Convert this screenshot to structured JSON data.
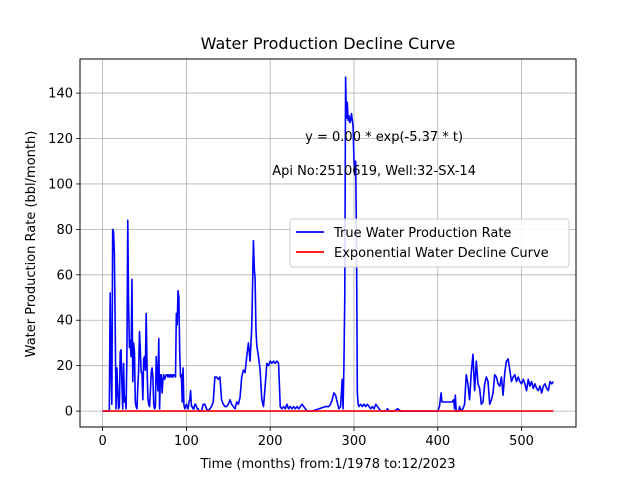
{
  "chart_data": {
    "type": "line",
    "title": "Water Production Decline Curve",
    "xlabel": "Time (months) from:1/1978 to:12/2023",
    "ylabel": "Water Production Rate (bbl/month)",
    "xlim": [
      -27,
      565
    ],
    "ylim": [
      -7,
      155
    ],
    "xticks": [
      0,
      100,
      200,
      300,
      400,
      500
    ],
    "yticks": [
      0,
      20,
      40,
      60,
      80,
      100,
      120,
      140
    ],
    "grid": true,
    "legend_position": "center-right",
    "annotations": [
      {
        "text": "y = 0.00 * exp(-5.37 * t)",
        "x": 336,
        "y": 119
      },
      {
        "text": "Api No:2510619, Well:32-SX-14",
        "x": 324,
        "y": 104
      }
    ],
    "series": [
      {
        "name": "True Water Production Rate",
        "color": "#0000ff",
        "points": [
          [
            0,
            0
          ],
          [
            8,
            0
          ],
          [
            9,
            52
          ],
          [
            10,
            18
          ],
          [
            11,
            3
          ],
          [
            12,
            80
          ],
          [
            13,
            79
          ],
          [
            14,
            70
          ],
          [
            15,
            38
          ],
          [
            16,
            1
          ],
          [
            17,
            19
          ],
          [
            18,
            10
          ],
          [
            19,
            1
          ],
          [
            20,
            2
          ],
          [
            21,
            26
          ],
          [
            22,
            27
          ],
          [
            23,
            12
          ],
          [
            24,
            1
          ],
          [
            25,
            21
          ],
          [
            26,
            4
          ],
          [
            27,
            6
          ],
          [
            28,
            1
          ],
          [
            29,
            25
          ],
          [
            30,
            84
          ],
          [
            31,
            47
          ],
          [
            32,
            28
          ],
          [
            33,
            31
          ],
          [
            34,
            24
          ],
          [
            35,
            58
          ],
          [
            36,
            13
          ],
          [
            37,
            30
          ],
          [
            38,
            26
          ],
          [
            39,
            4
          ],
          [
            40,
            2
          ],
          [
            41,
            1
          ],
          [
            42,
            11
          ],
          [
            43,
            18
          ],
          [
            44,
            35
          ],
          [
            45,
            27
          ],
          [
            46,
            17
          ],
          [
            47,
            17
          ],
          [
            48,
            5
          ],
          [
            49,
            23
          ],
          [
            50,
            24
          ],
          [
            51,
            18
          ],
          [
            52,
            43
          ],
          [
            53,
            20
          ],
          [
            54,
            6
          ],
          [
            55,
            3
          ],
          [
            56,
            2
          ],
          [
            57,
            9
          ],
          [
            58,
            17
          ],
          [
            59,
            19
          ],
          [
            60,
            15
          ],
          [
            61,
            3
          ],
          [
            62,
            1
          ],
          [
            63,
            2
          ],
          [
            64,
            24
          ],
          [
            65,
            15
          ],
          [
            66,
            9
          ],
          [
            67,
            32
          ],
          [
            68,
            1
          ],
          [
            69,
            16
          ],
          [
            70,
            16
          ],
          [
            71,
            8
          ],
          [
            72,
            14
          ],
          [
            73,
            16
          ],
          [
            74,
            14
          ],
          [
            75,
            15
          ],
          [
            76,
            16
          ],
          [
            77,
            16
          ],
          [
            78,
            15
          ],
          [
            79,
            16
          ],
          [
            80,
            15
          ],
          [
            81,
            16
          ],
          [
            82,
            15
          ],
          [
            83,
            16
          ],
          [
            84,
            15
          ],
          [
            85,
            16
          ],
          [
            86,
            16
          ],
          [
            87,
            15
          ],
          [
            88,
            43
          ],
          [
            89,
            38
          ],
          [
            90,
            53
          ],
          [
            91,
            50
          ],
          [
            92,
            26
          ],
          [
            93,
            15
          ],
          [
            94,
            16
          ],
          [
            95,
            4
          ],
          [
            96,
            19
          ],
          [
            97,
            3
          ],
          [
            98,
            1
          ],
          [
            99,
            2
          ],
          [
            100,
            3
          ],
          [
            101,
            2
          ],
          [
            102,
            1
          ],
          [
            103,
            4
          ],
          [
            104,
            5
          ],
          [
            105,
            9
          ],
          [
            106,
            2
          ],
          [
            107,
            2
          ],
          [
            108,
            1
          ],
          [
            109,
            1
          ],
          [
            110,
            3
          ],
          [
            111,
            3
          ],
          [
            112,
            2
          ],
          [
            113,
            1
          ],
          [
            114,
            1
          ],
          [
            115,
            0
          ],
          [
            118,
            0
          ],
          [
            120,
            3
          ],
          [
            122,
            3
          ],
          [
            124,
            1
          ],
          [
            126,
            0
          ],
          [
            128,
            1
          ],
          [
            130,
            2
          ],
          [
            132,
            4
          ],
          [
            134,
            15
          ],
          [
            136,
            15
          ],
          [
            138,
            14
          ],
          [
            140,
            15
          ],
          [
            142,
            5
          ],
          [
            144,
            3
          ],
          [
            146,
            2
          ],
          [
            148,
            2
          ],
          [
            150,
            3
          ],
          [
            152,
            5
          ],
          [
            154,
            3
          ],
          [
            156,
            2
          ],
          [
            158,
            1
          ],
          [
            160,
            4
          ],
          [
            162,
            3
          ],
          [
            164,
            6
          ],
          [
            166,
            15
          ],
          [
            168,
            18
          ],
          [
            170,
            17
          ],
          [
            172,
            24
          ],
          [
            174,
            30
          ],
          [
            176,
            22
          ],
          [
            178,
            37
          ],
          [
            180,
            75
          ],
          [
            181,
            63
          ],
          [
            182,
            58
          ],
          [
            183,
            36
          ],
          [
            184,
            29
          ],
          [
            186,
            24
          ],
          [
            188,
            18
          ],
          [
            190,
            5
          ],
          [
            192,
            2
          ],
          [
            194,
            11
          ],
          [
            196,
            21
          ],
          [
            198,
            20
          ],
          [
            200,
            22
          ],
          [
            202,
            21
          ],
          [
            204,
            22
          ],
          [
            206,
            21
          ],
          [
            208,
            22
          ],
          [
            210,
            21
          ],
          [
            212,
            2
          ],
          [
            214,
            1
          ],
          [
            216,
            2
          ],
          [
            218,
            1
          ],
          [
            220,
            3
          ],
          [
            222,
            1
          ],
          [
            224,
            2
          ],
          [
            226,
            1
          ],
          [
            228,
            2
          ],
          [
            230,
            1
          ],
          [
            232,
            2
          ],
          [
            234,
            1
          ],
          [
            236,
            2
          ],
          [
            238,
            3
          ],
          [
            240,
            2
          ],
          [
            242,
            1
          ],
          [
            244,
            0
          ],
          [
            250,
            0
          ],
          [
            258,
            1
          ],
          [
            266,
            2
          ],
          [
            270,
            2
          ],
          [
            272,
            3
          ],
          [
            274,
            5
          ],
          [
            276,
            8
          ],
          [
            278,
            7
          ],
          [
            280,
            4
          ],
          [
            282,
            1
          ],
          [
            284,
            2
          ],
          [
            286,
            14
          ],
          [
            287,
            1
          ],
          [
            288,
            20
          ],
          [
            289,
            50
          ],
          [
            290,
            147
          ],
          [
            291,
            129
          ],
          [
            292,
            136
          ],
          [
            293,
            128
          ],
          [
            294,
            130
          ],
          [
            295,
            127
          ],
          [
            296,
            128
          ],
          [
            297,
            131
          ],
          [
            298,
            128
          ],
          [
            299,
            125
          ],
          [
            300,
            110
          ],
          [
            301,
            104
          ],
          [
            302,
            110
          ],
          [
            303,
            77
          ],
          [
            304,
            8
          ],
          [
            305,
            3
          ],
          [
            306,
            2
          ],
          [
            308,
            3
          ],
          [
            310,
            2
          ],
          [
            312,
            3
          ],
          [
            314,
            2
          ],
          [
            316,
            3
          ],
          [
            318,
            2
          ],
          [
            320,
            1
          ],
          [
            322,
            2
          ],
          [
            324,
            1
          ],
          [
            326,
            3
          ],
          [
            328,
            2
          ],
          [
            330,
            1
          ],
          [
            332,
            0
          ],
          [
            338,
            0
          ],
          [
            340,
            1
          ],
          [
            342,
            0
          ],
          [
            348,
            0
          ],
          [
            352,
            1
          ],
          [
            356,
            0
          ],
          [
            398,
            0
          ],
          [
            400,
            0
          ],
          [
            402,
            2
          ],
          [
            404,
            8
          ],
          [
            405,
            4
          ],
          [
            407,
            4
          ],
          [
            409,
            4
          ],
          [
            411,
            4
          ],
          [
            413,
            4
          ],
          [
            415,
            4
          ],
          [
            417,
            4
          ],
          [
            419,
            5
          ],
          [
            420,
            1
          ],
          [
            421,
            7
          ],
          [
            422,
            0
          ],
          [
            425,
            0
          ],
          [
            426,
            2
          ],
          [
            428,
            0
          ],
          [
            430,
            1
          ],
          [
            432,
            3
          ],
          [
            434,
            16
          ],
          [
            436,
            12
          ],
          [
            438,
            5
          ],
          [
            440,
            17
          ],
          [
            442,
            25
          ],
          [
            444,
            9
          ],
          [
            446,
            22
          ],
          [
            448,
            12
          ],
          [
            450,
            10
          ],
          [
            452,
            3
          ],
          [
            454,
            4
          ],
          [
            456,
            12
          ],
          [
            458,
            15
          ],
          [
            460,
            13
          ],
          [
            462,
            3
          ],
          [
            464,
            5
          ],
          [
            466,
            8
          ],
          [
            468,
            16
          ],
          [
            470,
            15
          ],
          [
            472,
            12
          ],
          [
            474,
            11
          ],
          [
            476,
            15
          ],
          [
            478,
            7
          ],
          [
            480,
            17
          ],
          [
            482,
            22
          ],
          [
            484,
            23
          ],
          [
            486,
            18
          ],
          [
            488,
            13
          ],
          [
            490,
            15
          ],
          [
            492,
            16
          ],
          [
            494,
            13
          ],
          [
            496,
            15
          ],
          [
            498,
            13
          ],
          [
            500,
            12
          ],
          [
            502,
            14
          ],
          [
            504,
            12
          ],
          [
            506,
            9
          ],
          [
            508,
            14
          ],
          [
            510,
            11
          ],
          [
            512,
            13
          ],
          [
            514,
            10
          ],
          [
            516,
            12
          ],
          [
            518,
            10
          ],
          [
            520,
            9
          ],
          [
            522,
            11
          ],
          [
            524,
            8
          ],
          [
            526,
            11
          ],
          [
            528,
            12
          ],
          [
            530,
            10
          ],
          [
            532,
            9
          ],
          [
            534,
            13
          ],
          [
            536,
            12
          ],
          [
            538,
            13
          ]
        ]
      },
      {
        "name": "Exponential Water Decline Curve",
        "color": "#ff0000",
        "points": [
          [
            0,
            0
          ],
          [
            538,
            0
          ]
        ]
      }
    ]
  }
}
